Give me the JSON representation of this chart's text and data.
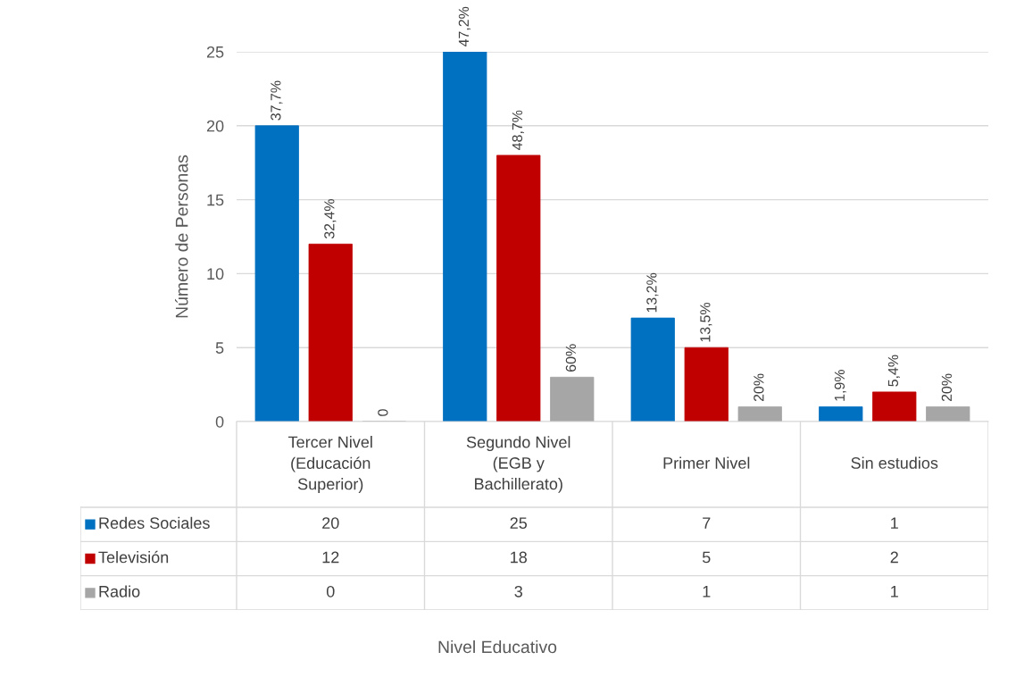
{
  "chart_data": {
    "type": "bar",
    "ylabel": "Número de Personas",
    "categories": [
      "Tercer Nivel\n(Educación\nSuperior)",
      "Segundo Nivel\n(EGB y\nBachillerato)",
      "Primer Nivel",
      "Sin estudios"
    ],
    "series": [
      {
        "name": "Redes Sociales",
        "color": "#0070c0",
        "values": [
          20,
          25,
          7,
          1
        ]
      },
      {
        "name": "Televisión",
        "color": "#c00000",
        "values": [
          12,
          18,
          5,
          2
        ]
      },
      {
        "name": "Radio",
        "color": "#a6a6a6",
        "values": [
          0,
          3,
          1,
          1
        ]
      }
    ],
    "annotations": [
      "37,7%",
      "47,2%",
      "13,2%",
      "1,9%",
      "32,4%",
      "48,7%",
      "13,5%",
      "5,4%",
      "0",
      "60%",
      "20%",
      "20%",
      "Nivel Educativo"
    ],
    "ylim": [
      0,
      25
    ],
    "yticks": [
      0,
      5,
      10,
      15,
      20,
      25
    ],
    "grid": "y",
    "data_labels": true,
    "legend": "bottom left"
  }
}
